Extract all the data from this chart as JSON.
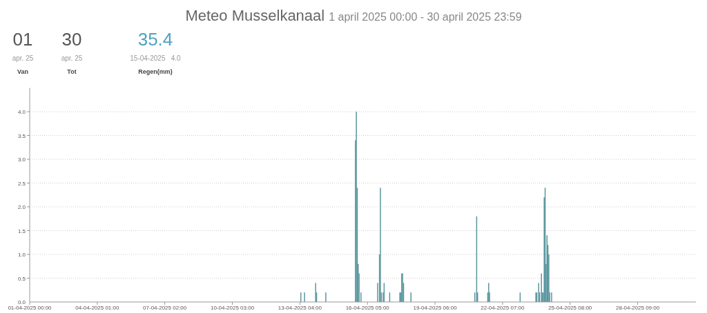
{
  "chart_data": {
    "type": "bar",
    "title": "Meteo Musselkanaal",
    "subtitle": "1 april 2025 00:00 - 30 april 2025 23:59",
    "annotations": [
      "01",
      "apr. 25",
      "Van",
      "30",
      "apr. 25",
      "Tot",
      "35.4",
      "15-04-2025   4.0",
      "Regen(mm)"
    ],
    "x": [
      "2025-04-13T05:00",
      "2025-04-13T09:00",
      "2025-04-13T21:00",
      "2025-04-13T22:00",
      "2025-04-14T08:00",
      "2025-04-15T16:00",
      "2025-04-15T17:00",
      "2025-04-15T18:00",
      "2025-04-15T19:00",
      "2025-04-15T20:00",
      "2025-04-15T22:00",
      "2025-04-16T16:00",
      "2025-04-16T18:00",
      "2025-04-16T19:00",
      "2025-04-16T20:00",
      "2025-04-16T22:00",
      "2025-04-16T23:00",
      "2025-04-17T05:00",
      "2025-04-17T16:00",
      "2025-04-17T17:00",
      "2025-04-17T18:00",
      "2025-04-17T19:00",
      "2025-04-17T20:00",
      "2025-04-18T04:00",
      "2025-04-21T01:00",
      "2025-04-21T03:00",
      "2025-04-21T04:00",
      "2025-04-21T15:00",
      "2025-04-21T16:00",
      "2025-04-21T17:00",
      "2025-04-23T02:00",
      "2025-04-23T19:00",
      "2025-04-23T20:00",
      "2025-04-23T22:00",
      "2025-04-23T23:00",
      "2025-04-24T01:00",
      "2025-04-24T02:00",
      "2025-04-24T03:00",
      "2025-04-24T04:00",
      "2025-04-24T05:00",
      "2025-04-24T06:00",
      "2025-04-24T07:00",
      "2025-04-24T08:00",
      "2025-04-24T09:00",
      "2025-04-24T10:00",
      "2025-04-24T12:00"
    ],
    "values": [
      0.2,
      0.2,
      0.4,
      0.2,
      0.2,
      3.4,
      4.0,
      2.4,
      0.8,
      0.6,
      0.2,
      0.4,
      1.0,
      2.4,
      0.2,
      0.2,
      0.4,
      0.2,
      0.2,
      0.2,
      0.6,
      0.6,
      0.4,
      0.2,
      0.2,
      1.8,
      0.2,
      0.2,
      0.4,
      0.2,
      0.2,
      0.2,
      0.2,
      0.4,
      0.2,
      0.6,
      0.2,
      0.2,
      2.2,
      2.4,
      0.8,
      1.4,
      1.2,
      1.0,
      0.2,
      0.2
    ],
    "color": "#5b969e",
    "xlim": [
      "2025-04-01T00:00",
      "2025-04-30T23:59"
    ],
    "xticks": [
      {
        "value": "2025-04-01T00:00",
        "label": "01-04-2025 00:00"
      },
      {
        "value": "2025-04-04T01:00",
        "label": "04-04-2025 01:00"
      },
      {
        "value": "2025-04-07T02:00",
        "label": "07-04-2025 02:00"
      },
      {
        "value": "2025-04-10T03:00",
        "label": "10-04-2025 03:00"
      },
      {
        "value": "2025-04-13T04:00",
        "label": "13-04-2025 04:00"
      },
      {
        "value": "2025-04-16T05:00",
        "label": "16-04-2025 05:00"
      },
      {
        "value": "2025-04-19T06:00",
        "label": "19-04-2025 06:00"
      },
      {
        "value": "2025-04-22T07:00",
        "label": "22-04-2025 07:00"
      },
      {
        "value": "2025-04-25T08:00",
        "label": "25-04-2025 08:00"
      },
      {
        "value": "2025-04-28T09:00",
        "label": "28-04-2025 09:00"
      }
    ],
    "ylim": [
      0,
      4.5
    ],
    "yticks": [
      {
        "value": 0,
        "label": "0.0"
      },
      {
        "value": 0.5,
        "label": "0.5"
      },
      {
        "value": 1,
        "label": "1.0"
      },
      {
        "value": 1.5,
        "label": "1.5"
      },
      {
        "value": 2,
        "label": "2.0"
      },
      {
        "value": 2.5,
        "label": "2.5"
      },
      {
        "value": 3,
        "label": "3.0"
      },
      {
        "value": 3.5,
        "label": "3.5"
      },
      {
        "value": 4,
        "label": "4.0"
      }
    ],
    "grid": "y"
  }
}
